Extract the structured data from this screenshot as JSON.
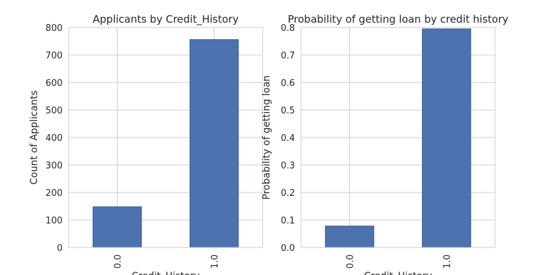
{
  "chart_data": [
    {
      "type": "bar",
      "title": "Applicants by Credit_History",
      "xlabel": "Credit_History",
      "ylabel": "Count of Applicants",
      "categories": [
        "0.0",
        "1.0"
      ],
      "values": [
        148,
        756
      ],
      "color": "#4c72b0",
      "ylim": [
        0,
        800
      ],
      "yticks": [
        0,
        100,
        200,
        300,
        400,
        500,
        600,
        700,
        800
      ],
      "grid": true
    },
    {
      "type": "bar",
      "title": "Probability of getting loan by credit history",
      "xlabel": "Credit_History",
      "ylabel": "Probability of getting loan",
      "categories": [
        "0.0",
        "1.0"
      ],
      "values": [
        0.078,
        0.795
      ],
      "color": "#4c72b0",
      "ylim": [
        0,
        0.8
      ],
      "yticks": [
        {
          "value": 0,
          "label": "0.0"
        },
        0.1,
        0.2,
        0.3,
        0.4,
        0.5,
        0.6,
        0.7,
        0.8
      ],
      "grid": true
    }
  ]
}
